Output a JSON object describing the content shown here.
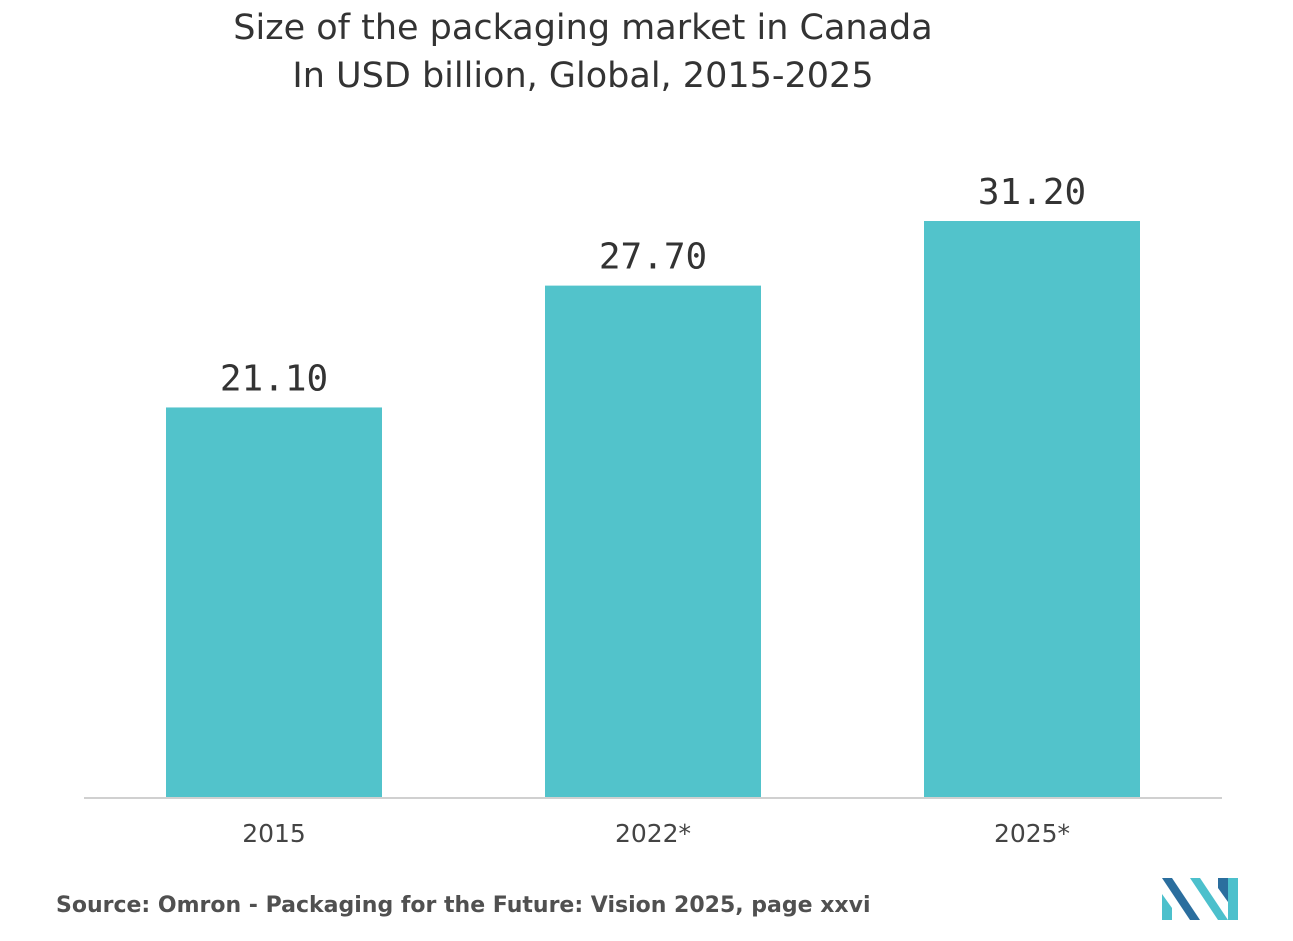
{
  "title_lines": [
    "Size of the packaging market in Canada",
    "In USD billion, Global, 2015-2025"
  ],
  "source": "Source: Omron - Packaging for the Future: Vision 2025, page xxvi",
  "colors": {
    "bar": "#52c3cb",
    "axis": "#d0d0d0",
    "text": "#333333",
    "tick_text": "#444444",
    "source_text": "#505050",
    "logo_dark": "#2b6e9e",
    "logo_light": "#4cc0cc"
  },
  "logo_icon": "brand-logo-icon",
  "chart_data": {
    "type": "bar",
    "title": "Size of the packaging market in Canada",
    "subtitle": "In USD billion, Global, 2015-2025",
    "categories": [
      "2015",
      "2022*",
      "2025*"
    ],
    "values": [
      21.1,
      27.7,
      31.2
    ],
    "value_labels": [
      "21.10",
      "27.70",
      "31.20"
    ],
    "ylim": [
      0,
      32.5
    ],
    "grid": false,
    "legend": "none"
  }
}
